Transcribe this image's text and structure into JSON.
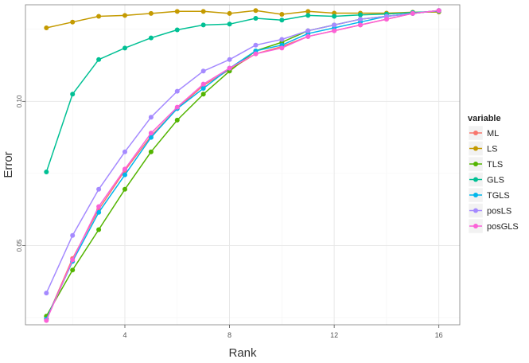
{
  "chart_data": {
    "type": "line",
    "title": "",
    "xlabel": "Rank",
    "ylabel": "Error",
    "xlim": [
      0.2,
      16.8
    ],
    "ylim": [
      0.0225,
      0.1335
    ],
    "x_ticks": [
      4,
      8,
      12,
      16
    ],
    "x_tick_labels": [
      "4",
      "8",
      "12",
      "16"
    ],
    "y_ticks": [
      0.05,
      0.1
    ],
    "y_tick_labels": [
      "0.05",
      "0.10"
    ],
    "grid": true,
    "legend_title": "variable",
    "legend_position": "right",
    "x": [
      1,
      2,
      3,
      4,
      5,
      6,
      7,
      8,
      9,
      10,
      11,
      12,
      13,
      14,
      15,
      16
    ],
    "series": [
      {
        "name": "ML",
        "color": "#F8766D",
        "values": [
          0.0245,
          0.0455,
          0.0625,
          0.076,
          0.088,
          0.0975,
          0.1055,
          0.111,
          0.1165,
          0.119,
          0.1225,
          0.1245,
          0.1265,
          0.1285,
          0.1305,
          0.1315
        ]
      },
      {
        "name": "LS",
        "color": "#C49A00",
        "values": [
          0.1255,
          0.1275,
          0.1295,
          0.1298,
          0.1305,
          0.1312,
          0.1312,
          0.1305,
          0.1315,
          0.1302,
          0.1312,
          0.1306,
          0.1306,
          0.1306,
          0.1309,
          0.131
        ]
      },
      {
        "name": "TLS",
        "color": "#53B400",
        "values": [
          0.0255,
          0.0415,
          0.0555,
          0.0695,
          0.0825,
          0.0935,
          0.1025,
          0.1105,
          0.1175,
          0.1205,
          0.1245,
          0.1265,
          0.1285,
          0.1295,
          0.1305,
          0.1315
        ]
      },
      {
        "name": "GLS",
        "color": "#00C094",
        "values": [
          0.0755,
          0.1025,
          0.1145,
          0.1185,
          0.122,
          0.1248,
          0.1265,
          0.1268,
          0.1288,
          0.1282,
          0.1298,
          0.1295,
          0.13,
          0.1303,
          0.1308,
          0.1313
        ]
      },
      {
        "name": "TGLS",
        "color": "#00B6EB",
        "values": [
          0.0245,
          0.0445,
          0.0615,
          0.0745,
          0.0875,
          0.0975,
          0.1045,
          0.1115,
          0.1175,
          0.1195,
          0.1235,
          0.1255,
          0.1275,
          0.1295,
          0.1305,
          0.1315
        ]
      },
      {
        "name": "posLS",
        "color": "#A58AFF",
        "values": [
          0.0335,
          0.0535,
          0.0695,
          0.0825,
          0.0945,
          0.1035,
          0.1105,
          0.1145,
          0.1195,
          0.1215,
          0.1245,
          0.1265,
          0.1285,
          0.1295,
          0.1305,
          0.1315
        ]
      },
      {
        "name": "posGLS",
        "color": "#FB61D7",
        "values": [
          0.024,
          0.045,
          0.0635,
          0.0765,
          0.089,
          0.098,
          0.106,
          0.1115,
          0.1165,
          0.1185,
          0.1225,
          0.1245,
          0.1265,
          0.1285,
          0.1305,
          0.1315
        ]
      }
    ]
  }
}
